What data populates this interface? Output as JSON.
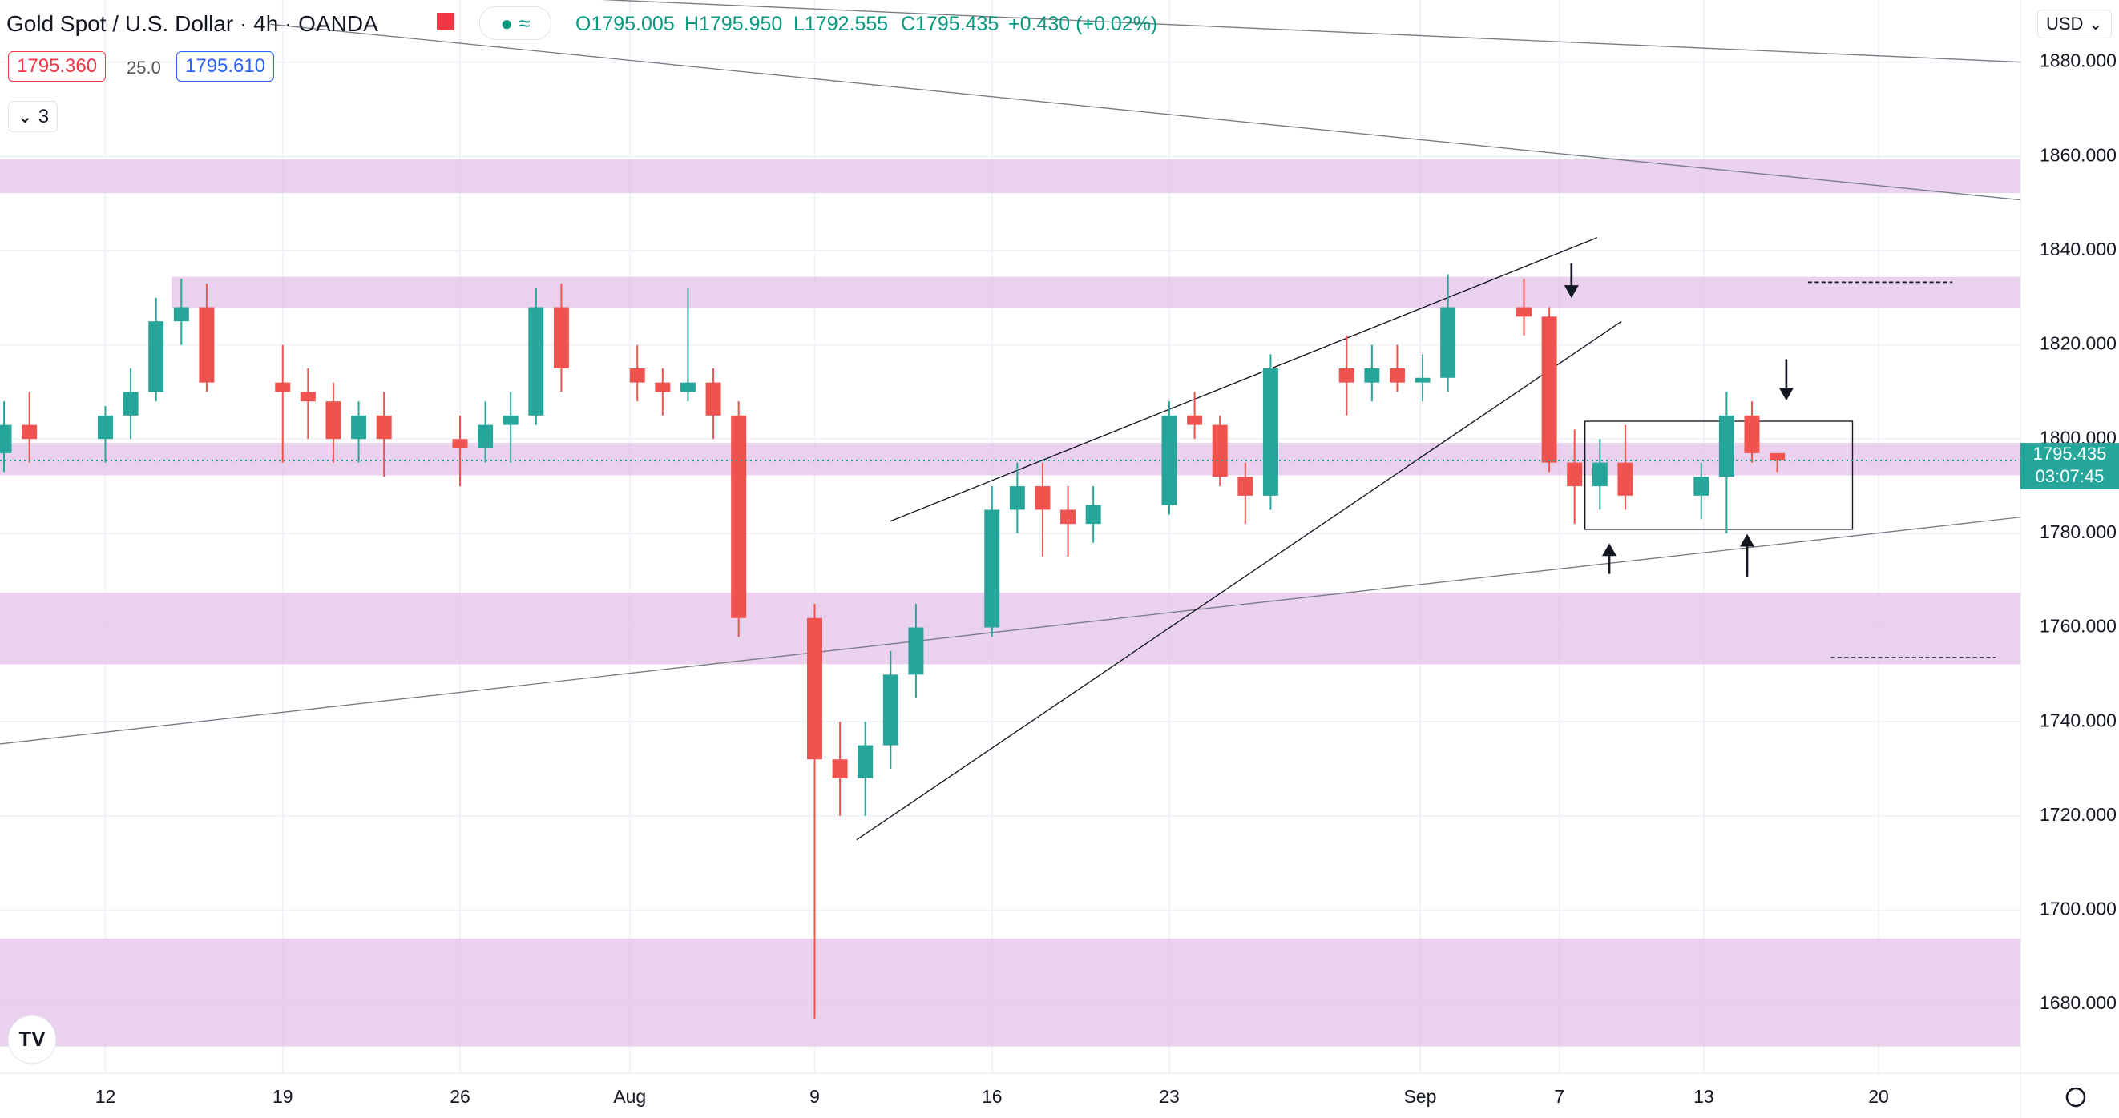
{
  "header": {
    "symbol": "Gold Spot / U.S. Dollar",
    "interval": "4h",
    "source": "OANDA",
    "open": "O1795.005",
    "high": "H1795.950",
    "low": "L1792.555",
    "close": "C1795.435",
    "change": "+0.430 (+0.02%)",
    "sell": "1795.360",
    "spread": "25.0",
    "buy": "1795.610",
    "indicators": "3",
    "currency": "USD",
    "last_price": "1795.435",
    "countdown": "03:07:45"
  },
  "chart_data": {
    "type": "candlestick",
    "up_color": "#26a69a",
    "down_color": "#ef5350",
    "grid": true,
    "x": [
      8,
      9,
      12,
      13,
      14,
      15,
      16,
      19,
      20,
      21,
      22,
      23,
      26,
      27,
      28,
      29,
      30,
      33,
      34,
      35,
      36,
      37,
      40,
      41,
      42,
      43,
      44,
      47,
      48,
      49,
      50,
      51,
      54,
      55,
      56,
      57,
      58,
      61,
      62,
      63,
      64,
      65,
      68,
      69,
      70,
      71,
      72,
      75,
      76,
      77,
      78
    ],
    "open": [
      1797,
      1803,
      1800,
      1805,
      1810,
      1825,
      1828,
      1812,
      1810,
      1808,
      1800,
      1805,
      1800,
      1798,
      1803,
      1805,
      1828,
      1815,
      1812,
      1810,
      1812,
      1805,
      1762,
      1732,
      1728,
      1735,
      1750,
      1760,
      1785,
      1790,
      1785,
      1782,
      1786,
      1805,
      1803,
      1792,
      1788,
      1815,
      1812,
      1815,
      1812,
      1813,
      1828,
      1826,
      1795,
      1790,
      1795,
      1788,
      1792,
      1805,
      1797
    ],
    "high": [
      1808,
      1810,
      1807,
      1815,
      1830,
      1834,
      1833,
      1820,
      1815,
      1812,
      1808,
      1810,
      1805,
      1808,
      1810,
      1832,
      1833,
      1820,
      1815,
      1832,
      1815,
      1808,
      1765,
      1740,
      1740,
      1755,
      1765,
      1790,
      1795,
      1795,
      1790,
      1790,
      1808,
      1810,
      1805,
      1795,
      1818,
      1822,
      1820,
      1820,
      1818,
      1835,
      1834,
      1828,
      1802,
      1800,
      1803,
      1795,
      1810,
      1808,
      1797
    ],
    "low": [
      1793,
      1795,
      1795,
      1800,
      1808,
      1820,
      1810,
      1795,
      1800,
      1795,
      1795,
      1792,
      1790,
      1795,
      1795,
      1803,
      1810,
      1808,
      1805,
      1808,
      1800,
      1758,
      1677,
      1720,
      1720,
      1730,
      1745,
      1758,
      1780,
      1775,
      1775,
      1778,
      1784,
      1800,
      1790,
      1782,
      1785,
      1805,
      1808,
      1810,
      1808,
      1810,
      1822,
      1793,
      1782,
      1785,
      1785,
      1783,
      1780,
      1795,
      1793
    ],
    "close": [
      1803,
      1800,
      1805,
      1810,
      1825,
      1828,
      1812,
      1810,
      1808,
      1800,
      1805,
      1800,
      1798,
      1803,
      1805,
      1828,
      1815,
      1812,
      1810,
      1812,
      1805,
      1762,
      1732,
      1728,
      1735,
      1750,
      1760,
      1785,
      1790,
      1785,
      1782,
      1786,
      1805,
      1803,
      1792,
      1788,
      1815,
      1812,
      1815,
      1812,
      1813,
      1828,
      1826,
      1795,
      1790,
      1795,
      1788,
      1792,
      1805,
      1797,
      1795.435
    ],
    "xlim": [
      7.84,
      87.6
    ],
    "xticks": [
      {
        "value": 12,
        "label": "12"
      },
      {
        "value": 19,
        "label": "19"
      },
      {
        "value": 26,
        "label": "26"
      },
      {
        "value": 32.7,
        "label": "Aug"
      },
      {
        "value": 40,
        "label": "9"
      },
      {
        "value": 47,
        "label": "16"
      },
      {
        "value": 54,
        "label": "23"
      },
      {
        "value": 63.9,
        "label": "Sep"
      },
      {
        "value": 69.4,
        "label": "7"
      },
      {
        "value": 75.1,
        "label": "13"
      },
      {
        "value": 82,
        "label": "20"
      }
    ],
    "ylim": [
      1665.4,
      1893.2
    ],
    "yticks": [
      {
        "value": 1680,
        "label": "1680.000"
      },
      {
        "value": 1700,
        "label": "1700.000"
      },
      {
        "value": 1720,
        "label": "1720.000"
      },
      {
        "value": 1740,
        "label": "1740.000"
      },
      {
        "value": 1760,
        "label": "1760.000"
      },
      {
        "value": 1780,
        "label": "1780.000"
      },
      {
        "value": 1800,
        "label": "1800.000"
      },
      {
        "value": 1820,
        "label": "1820.000"
      },
      {
        "value": 1840,
        "label": "1840.000"
      },
      {
        "value": 1860,
        "label": "1860.000"
      },
      {
        "value": 1880,
        "label": "1880.000"
      }
    ],
    "last_value": 1795.435
  }
}
